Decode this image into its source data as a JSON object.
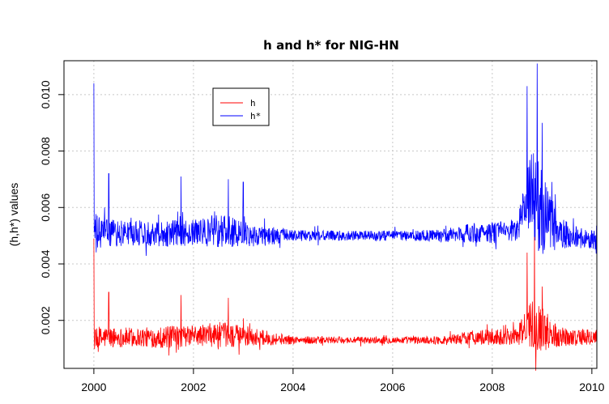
{
  "chart_data": {
    "type": "line",
    "title": "h and h* for NIG-HN",
    "xlabel": "",
    "ylabel": "(h,h*) values",
    "xlim": [
      1999.4,
      2010.1
    ],
    "ylim": [
      0.0003,
      0.0112
    ],
    "x_ticks": [
      "2000",
      "2002",
      "2004",
      "2006",
      "2008",
      "2010"
    ],
    "y_ticks": [
      "0.002",
      "0.004",
      "0.006",
      "0.008",
      "0.010"
    ],
    "grid": true,
    "legend_position": "top-left",
    "series": [
      {
        "name": "h",
        "color": "#ff0000",
        "profile": {
          "x": [
            2000.0,
            2000.03,
            2000.2,
            2000.5,
            2001.0,
            2001.5,
            2002.0,
            2002.5,
            2002.9,
            2003.3,
            2004.0,
            2005.0,
            2006.0,
            2007.0,
            2007.6,
            2008.0,
            2008.5,
            2008.8,
            2009.0,
            2009.3,
            2009.6,
            2010.0,
            2010.1
          ],
          "center": [
            0.0014,
            0.0012,
            0.0014,
            0.0014,
            0.0014,
            0.0014,
            0.00145,
            0.0015,
            0.00145,
            0.0014,
            0.0013,
            0.0013,
            0.0013,
            0.0013,
            0.0014,
            0.0014,
            0.00145,
            0.0019,
            0.0017,
            0.00145,
            0.0014,
            0.0014,
            0.0014
          ],
          "spread": [
            0.00035,
            0.0005,
            0.0004,
            0.00035,
            0.00035,
            0.0004,
            0.00035,
            0.00045,
            0.0004,
            0.0003,
            0.00015,
            0.00012,
            0.00012,
            0.00015,
            0.00025,
            0.0003,
            0.0003,
            0.0009,
            0.0008,
            0.0004,
            0.0003,
            0.0003,
            0.0003
          ],
          "peaks": [
            [
              2000.0,
              0.0049
            ],
            [
              2000.3,
              0.003
            ],
            [
              2001.75,
              0.0029
            ],
            [
              2002.7,
              0.0028
            ],
            [
              2008.7,
              0.0044
            ],
            [
              2008.85,
              0.0052
            ],
            [
              2009.0,
              0.0032
            ]
          ]
        }
      },
      {
        "name": "h*",
        "color": "#0000ff",
        "profile": {
          "x": [
            2000.0,
            2000.03,
            2000.2,
            2000.5,
            2001.0,
            2001.5,
            2002.0,
            2002.5,
            2002.9,
            2003.3,
            2004.0,
            2005.0,
            2006.0,
            2007.0,
            2007.6,
            2008.0,
            2008.5,
            2008.8,
            2009.0,
            2009.3,
            2009.6,
            2010.0,
            2010.1
          ],
          "center": [
            0.0051,
            0.005,
            0.0051,
            0.0051,
            0.0051,
            0.0051,
            0.0051,
            0.0052,
            0.0051,
            0.005,
            0.005,
            0.005,
            0.005,
            0.005,
            0.0051,
            0.0051,
            0.0052,
            0.0064,
            0.0058,
            0.0051,
            0.005,
            0.0049,
            0.0049
          ],
          "spread": [
            0.0004,
            0.0008,
            0.0005,
            0.00045,
            0.00045,
            0.0005,
            0.00045,
            0.0006,
            0.0005,
            0.0004,
            0.0002,
            0.00018,
            0.00018,
            0.00022,
            0.00035,
            0.0004,
            0.0004,
            0.0018,
            0.0015,
            0.0006,
            0.0004,
            0.0004,
            0.0004
          ],
          "peaks": [
            [
              2000.0,
              0.0104
            ],
            [
              2000.3,
              0.0072
            ],
            [
              2001.75,
              0.0071
            ],
            [
              2002.7,
              0.007
            ],
            [
              2003.0,
              0.0069
            ],
            [
              2008.7,
              0.0103
            ],
            [
              2008.9,
              0.0111
            ],
            [
              2009.0,
              0.009
            ]
          ]
        }
      }
    ]
  }
}
